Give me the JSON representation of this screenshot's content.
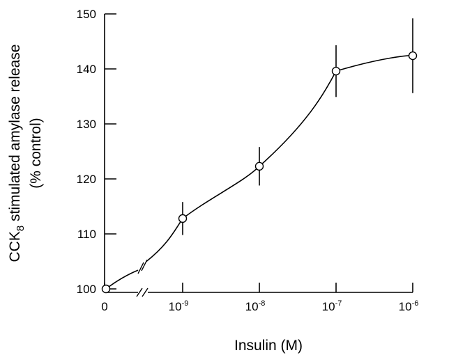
{
  "chart_data": {
    "type": "scatter",
    "xlabel": "Insulin (M)",
    "ylabel_line1": "CCK",
    "ylabel_sub": "8",
    "ylabel_rest": " stimulated amylase release",
    "ylabel_line2": "(% control)",
    "ylim": [
      100,
      150
    ],
    "yticks": [
      100,
      110,
      120,
      130,
      140,
      150
    ],
    "xticks": [
      {
        "x": 0,
        "base": "0",
        "exp": ""
      },
      {
        "x": 1e-09,
        "base": "10",
        "exp": "-9"
      },
      {
        "x": 1e-08,
        "base": "10",
        "exp": "-8"
      },
      {
        "x": 1e-07,
        "base": "10",
        "exp": "-7"
      },
      {
        "x": 1e-06,
        "base": "10",
        "exp": "-6"
      }
    ],
    "x_scale": "log with axis break between 0 and 10^-9",
    "points": [
      {
        "x": 0,
        "y": 100,
        "err": 0
      },
      {
        "x": 1e-09,
        "y": 112.8,
        "err": 3
      },
      {
        "x": 1e-08,
        "y": 122.3,
        "err": 3.5
      },
      {
        "x": 1e-07,
        "y": 139.6,
        "err": 4.7
      },
      {
        "x": 1e-06,
        "y": 142.4,
        "err": 6.8
      }
    ],
    "fit_curve": "smooth sigmoid through points",
    "grid": false,
    "legend": "none",
    "color": "#000000"
  }
}
